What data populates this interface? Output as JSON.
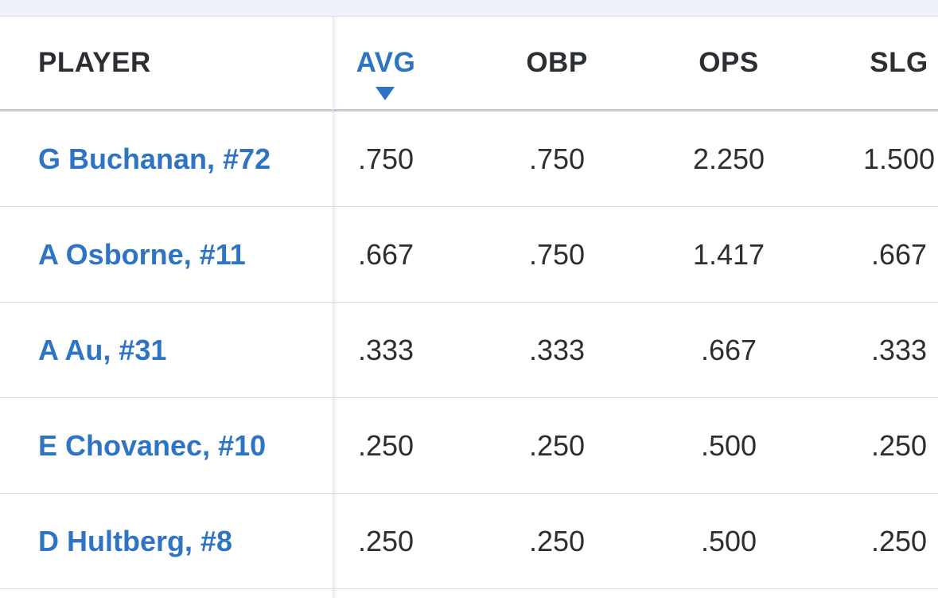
{
  "header": {
    "player": "PLAYER",
    "avg": "AVG",
    "obp": "OBP",
    "ops": "OPS",
    "slg": "SLG",
    "sorted_column": "AVG",
    "sort_direction": "descending"
  },
  "colors": {
    "accent": "#2f74c4",
    "text": "#2b2f33",
    "top_strip": "#edf2f9",
    "divider": "#d8dde3"
  },
  "rows": [
    {
      "player": "G Buchanan, #72",
      "avg": ".750",
      "obp": ".750",
      "ops": "2.250",
      "slg": "1.500"
    },
    {
      "player": "A Osborne, #11",
      "avg": ".667",
      "obp": ".750",
      "ops": "1.417",
      "slg": ".667"
    },
    {
      "player": "A Au, #31",
      "avg": ".333",
      "obp": ".333",
      "ops": ".667",
      "slg": ".333"
    },
    {
      "player": "E Chovanec, #10",
      "avg": ".250",
      "obp": ".250",
      "ops": ".500",
      "slg": ".250"
    },
    {
      "player": "D Hultberg, #8",
      "avg": ".250",
      "obp": ".250",
      "ops": ".500",
      "slg": ".250"
    }
  ]
}
